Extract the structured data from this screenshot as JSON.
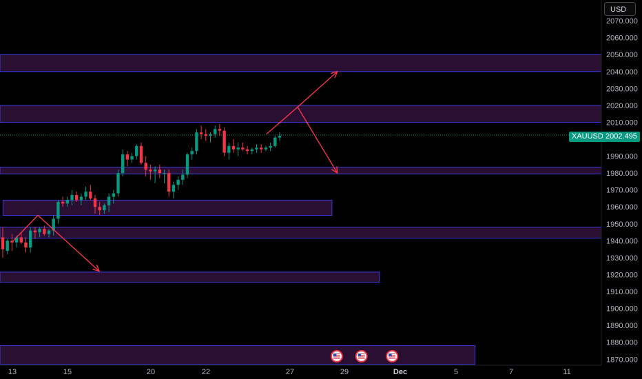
{
  "chart_data": {
    "type": "candlestick",
    "symbol": "XAUUSD",
    "currency": "USD",
    "last_price": "2002.495",
    "y_ticks": [
      "2070.000",
      "2060.000",
      "2050.000",
      "2040.000",
      "2030.000",
      "2020.000",
      "2010.000",
      "2000.000",
      "1990.000",
      "1980.000",
      "1970.000",
      "1960.000",
      "1950.000",
      "1940.000",
      "1930.000",
      "1920.000",
      "1910.000",
      "1900.000",
      "1890.000",
      "1880.000",
      "1870.000"
    ],
    "x_ticks": [
      "13",
      "15",
      "20",
      "22",
      "27",
      "29",
      "Dec",
      "5",
      "7",
      "11"
    ],
    "ylim": [
      1868,
      2074
    ],
    "grid": false,
    "candles": [
      [
        1942,
        1948,
        1930,
        1935
      ],
      [
        1934,
        1941,
        1932,
        1940
      ],
      [
        1940,
        1944,
        1934,
        1939
      ],
      [
        1939,
        1943,
        1936,
        1942
      ],
      [
        1942,
        1945,
        1938,
        1939
      ],
      [
        1939,
        1942,
        1933,
        1936
      ],
      [
        1936,
        1948,
        1933,
        1946
      ],
      [
        1946,
        1948,
        1941,
        1945
      ],
      [
        1945,
        1948,
        1942,
        1947
      ],
      [
        1947,
        1949,
        1943,
        1944
      ],
      [
        1944,
        1947,
        1942,
        1946
      ],
      [
        1946,
        1955,
        1943,
        1953
      ],
      [
        1953,
        1964,
        1950,
        1963
      ],
      [
        1963,
        1966,
        1960,
        1962
      ],
      [
        1962,
        1966,
        1960,
        1964
      ],
      [
        1964,
        1970,
        1961,
        1967
      ],
      [
        1967,
        1969,
        1963,
        1964
      ],
      [
        1964,
        1968,
        1961,
        1966
      ],
      [
        1966,
        1972,
        1964,
        1969
      ],
      [
        1969,
        1973,
        1964,
        1965
      ],
      [
        1965,
        1967,
        1956,
        1960
      ],
      [
        1960,
        1963,
        1955,
        1958
      ],
      [
        1958,
        1962,
        1956,
        1961
      ],
      [
        1961,
        1968,
        1957,
        1966
      ],
      [
        1966,
        1970,
        1962,
        1968
      ],
      [
        1968,
        1982,
        1966,
        1980
      ],
      [
        1980,
        1994,
        1978,
        1991
      ],
      [
        1991,
        1993,
        1984,
        1988
      ],
      [
        1988,
        1992,
        1986,
        1990
      ],
      [
        1990,
        1997,
        1988,
        1996
      ],
      [
        1996,
        1998,
        1985,
        1986
      ],
      [
        1986,
        1990,
        1978,
        1982
      ],
      [
        1982,
        1985,
        1976,
        1981
      ],
      [
        1981,
        1984,
        1974,
        1982
      ],
      [
        1982,
        1985,
        1977,
        1980
      ],
      [
        1980,
        1982,
        1974,
        1980
      ],
      [
        1980,
        1982,
        1966,
        1969
      ],
      [
        1969,
        1975,
        1965,
        1973
      ],
      [
        1973,
        1978,
        1970,
        1976
      ],
      [
        1976,
        1982,
        1973,
        1979
      ],
      [
        1979,
        1992,
        1977,
        1991
      ],
      [
        1991,
        1995,
        1988,
        1993
      ],
      [
        1993,
        2006,
        1991,
        2004
      ],
      [
        2004,
        2008,
        2000,
        2003
      ],
      [
        2003,
        2006,
        1999,
        2002
      ],
      [
        2002,
        2004,
        1998,
        2003
      ],
      [
        2003,
        2008,
        2001,
        2006
      ],
      [
        2006,
        2009,
        2002,
        2005
      ],
      [
        2005,
        2007,
        1990,
        1992
      ],
      [
        1992,
        1998,
        1988,
        1996
      ],
      [
        1996,
        2000,
        1992,
        1994
      ],
      [
        1994,
        1998,
        1990,
        1995
      ],
      [
        1995,
        1998,
        1993,
        1994
      ],
      [
        1994,
        1996,
        1991,
        1993
      ],
      [
        1993,
        1995,
        1991,
        1994
      ],
      [
        1994,
        1997,
        1992,
        1995
      ],
      [
        1995,
        1997,
        1992,
        1994
      ],
      [
        1994,
        1996,
        1993,
        1995
      ],
      [
        1995,
        1998,
        1993,
        1996
      ],
      [
        1996,
        2002,
        1995,
        2001
      ],
      [
        2001,
        2004,
        1999,
        2002
      ]
    ],
    "zones": [
      {
        "top": 2050,
        "bottom": 2040,
        "x0": 0,
        "x1": 1
      },
      {
        "top": 2020,
        "bottom": 2010,
        "x0": 0,
        "x1": 1
      },
      {
        "top": 1983.5,
        "bottom": 1979.5,
        "x0": 0,
        "x1": 1
      },
      {
        "top": 1964,
        "bottom": 1955,
        "x0": 0.005,
        "x1": 0.552
      },
      {
        "top": 1948,
        "bottom": 1941.5,
        "x0": 0,
        "x1": 1
      },
      {
        "top": 1921.5,
        "bottom": 1915.5,
        "x0": 0,
        "x1": 0.631
      },
      {
        "top": 1878,
        "bottom": 1867,
        "x0": 0,
        "x1": 0.79
      }
    ],
    "arrows": [
      [
        [
          0.022,
          1940
        ],
        [
          0.063,
          1955
        ],
        [
          0.165,
          1922
        ]
      ],
      [
        [
          0.443,
          2003
        ],
        [
          0.495,
          2019
        ],
        [
          0.561,
          2040
        ]
      ],
      [
        [
          0.495,
          2019
        ],
        [
          0.561,
          1980
        ]
      ]
    ],
    "event_markers": [
      0.56,
      0.601,
      0.652
    ],
    "colors": {
      "up": "#089981",
      "down": "#f23645",
      "zone_fill": "#2a0f33",
      "zone_border": "#3c3cdc",
      "arrow": "#f23645"
    }
  }
}
